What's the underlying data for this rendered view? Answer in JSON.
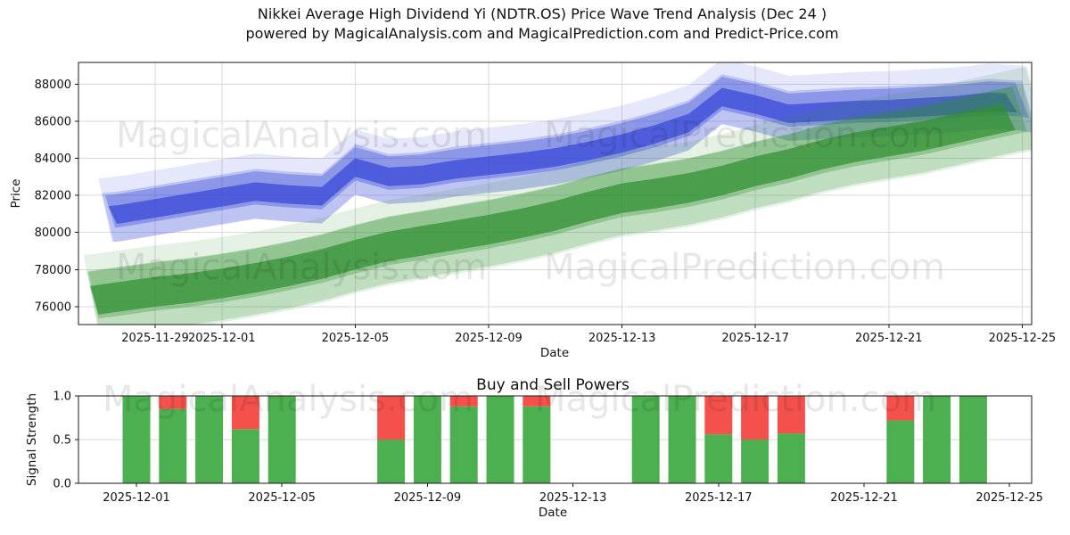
{
  "title": {
    "line1": "Nikkei Average High Dividend Yi (NDTR.OS) Price Wave Trend Analysis (Dec 24 )",
    "line2": "powered by MagicalAnalysis.com and MagicalPrediction.com and Predict-Price.com"
  },
  "watermarks": {
    "left": "MagicalAnalysis.com",
    "right": "MagicalPrediction.com"
  },
  "colors": {
    "blue_band": "#3647d6",
    "green_band": "#2f8f2f",
    "buy_green": "#4caf50",
    "sell_red": "#f4514c",
    "grid": "#d9d9d9",
    "spine": "#1a1a1a",
    "watermark": "#000000"
  },
  "chart_data": [
    {
      "type": "area",
      "name": "price_wave_trend",
      "xlabel": "Date",
      "ylabel": "Price",
      "x_start_date": "2025-11-27",
      "ylim": [
        75034,
        89168
      ],
      "yticks": [
        76000,
        78000,
        80000,
        82000,
        84000,
        86000,
        88000
      ],
      "xticks": [
        {
          "day": 2,
          "label": "2025-11-29"
        },
        {
          "day": 4,
          "label": "2025-12-01"
        },
        {
          "day": 8,
          "label": "2025-12-05"
        },
        {
          "day": 12,
          "label": "2025-12-09"
        },
        {
          "day": 16,
          "label": "2025-12-13"
        },
        {
          "day": 20,
          "label": "2025-12-17"
        },
        {
          "day": 24,
          "label": "2025-12-21"
        },
        {
          "day": 28,
          "label": "2025-12-25"
        }
      ],
      "grid": true,
      "legend": "none",
      "series": [
        {
          "name": "prediction-wave-band-blue",
          "color": "#3647d6",
          "days": [
            0,
            1,
            2,
            3,
            4,
            5,
            6,
            7,
            8,
            9,
            10,
            11,
            12,
            13,
            14,
            15,
            16,
            17,
            18,
            19,
            20,
            21,
            22,
            23,
            24,
            25,
            26,
            27,
            28,
            29
          ],
          "center": [
            80800,
            81000,
            81300,
            81600,
            81900,
            82200,
            82050,
            81950,
            83500,
            83000,
            83100,
            83400,
            83600,
            83800,
            84050,
            84400,
            84800,
            85300,
            85900,
            87300,
            86900,
            86400,
            86500,
            86600,
            86650,
            86750,
            86850,
            87050,
            86950,
            86600
          ],
          "layers": [
            {
              "hw": 1750,
              "alpha": 0.13,
              "dy": 300,
              "d0": 0.3,
              "d1": 28.1,
              "s0": 0.4,
              "s1": 0.5
            },
            {
              "hw": 1350,
              "alpha": 0.22,
              "dy": -120,
              "d0": 0.4,
              "d1": 28.0,
              "s0": 0.35,
              "s1": 0.45
            },
            {
              "hw": 900,
              "alpha": 0.36,
              "dy": 200,
              "d0": 0.5,
              "d1": 27.8,
              "s0": 0.3,
              "s1": 0.4
            },
            {
              "hw": 500,
              "alpha": 0.72,
              "dy": 0,
              "d0": 0.6,
              "d1": 27.5,
              "s0": 0.25,
              "s1": 0.35
            }
          ]
        },
        {
          "name": "analysis-wave-band-green",
          "color": "#2f8f2f",
          "days": [
            0,
            1,
            2,
            3,
            4,
            5,
            6,
            7,
            8,
            9,
            10,
            11,
            12,
            13,
            14,
            15,
            16,
            17,
            18,
            19,
            20,
            21,
            22,
            23,
            24,
            25,
            26,
            27,
            28,
            29
          ],
          "center": [
            76300,
            76550,
            76800,
            77000,
            77250,
            77550,
            77900,
            78300,
            78800,
            79250,
            79550,
            79850,
            80150,
            80500,
            80900,
            81400,
            81850,
            82100,
            82400,
            82800,
            83300,
            83700,
            84200,
            84600,
            84900,
            85200,
            85600,
            86000,
            86400,
            86600
          ],
          "layers": [
            {
              "hw": 2300,
              "alpha": 0.13,
              "dy": 200,
              "d0": -0.15,
              "d1": 28.15,
              "s0": 0.5,
              "s1": 0.6
            },
            {
              "hw": 1800,
              "alpha": 0.2,
              "dy": -180,
              "d0": -0.05,
              "d1": 28.0,
              "s0": 0.4,
              "s1": 0.5
            },
            {
              "hw": 1300,
              "alpha": 0.3,
              "dy": 280,
              "d0": 0.0,
              "d1": 27.7,
              "s0": 0.3,
              "s1": 0.45
            },
            {
              "hw": 800,
              "alpha": 0.72,
              "dy": 0,
              "d0": 0.05,
              "d1": 27.4,
              "s0": 0.25,
              "s1": 0.4
            }
          ]
        }
      ]
    },
    {
      "type": "bar",
      "name": "buy_sell_powers",
      "title": "Buy and Sell Powers",
      "xlabel": "Date",
      "ylabel": "Signal Strength",
      "ylim": [
        0,
        1
      ],
      "yticks": [
        "0.0",
        "0.5",
        "1.0"
      ],
      "xticks": [
        {
          "day": 4,
          "label": "2025-12-01"
        },
        {
          "day": 8,
          "label": "2025-12-05"
        },
        {
          "day": 12,
          "label": "2025-12-09"
        },
        {
          "day": 16,
          "label": "2025-12-13"
        },
        {
          "day": 20,
          "label": "2025-12-17"
        },
        {
          "day": 24,
          "label": "2025-12-21"
        },
        {
          "day": 28,
          "label": "2025-12-25"
        }
      ],
      "bars": [
        {
          "date": "2025-12-01",
          "day": 4,
          "buy": 1.0,
          "sell": 0.0
        },
        {
          "date": "2025-12-02",
          "day": 5,
          "buy": 0.85,
          "sell": 0.15
        },
        {
          "date": "2025-12-03",
          "day": 6,
          "buy": 1.0,
          "sell": 0.0
        },
        {
          "date": "2025-12-04",
          "day": 7,
          "buy": 0.62,
          "sell": 0.38
        },
        {
          "date": "2025-12-05",
          "day": 8,
          "buy": 1.0,
          "sell": 0.0
        },
        {
          "date": "2025-12-08",
          "day": 11,
          "buy": 0.5,
          "sell": 0.5
        },
        {
          "date": "2025-12-09",
          "day": 12,
          "buy": 1.0,
          "sell": 0.0
        },
        {
          "date": "2025-12-10",
          "day": 13,
          "buy": 0.88,
          "sell": 0.12
        },
        {
          "date": "2025-12-11",
          "day": 14,
          "buy": 1.0,
          "sell": 0.0
        },
        {
          "date": "2025-12-12",
          "day": 15,
          "buy": 0.88,
          "sell": 0.12
        },
        {
          "date": "2025-12-15",
          "day": 18,
          "buy": 1.0,
          "sell": 0.0
        },
        {
          "date": "2025-12-16",
          "day": 19,
          "buy": 1.0,
          "sell": 0.0
        },
        {
          "date": "2025-12-17",
          "day": 20,
          "buy": 0.56,
          "sell": 0.44
        },
        {
          "date": "2025-12-18",
          "day": 21,
          "buy": 0.5,
          "sell": 0.5
        },
        {
          "date": "2025-12-19",
          "day": 22,
          "buy": 0.57,
          "sell": 0.43
        },
        {
          "date": "2025-12-22",
          "day": 25,
          "buy": 0.72,
          "sell": 0.28
        },
        {
          "date": "2025-12-23",
          "day": 26,
          "buy": 1.0,
          "sell": 0.0
        },
        {
          "date": "2025-12-24",
          "day": 27,
          "buy": 1.0,
          "sell": 0.0
        }
      ]
    }
  ]
}
